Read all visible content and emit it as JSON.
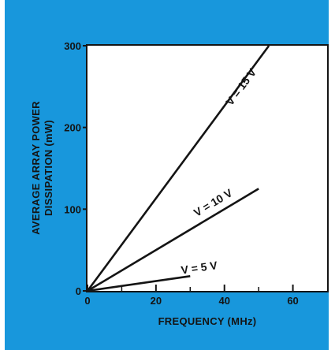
{
  "colors": {
    "background": "#1897dc",
    "plot_area": "#ffffff",
    "ink": "#141414"
  },
  "chart_data": {
    "type": "line",
    "title": "",
    "xlabel": "FREQUENCY (MHz)",
    "ylabel_lines": [
      "AVERAGE ARRAY POWER",
      "DISSIPATION (mW)"
    ],
    "xlim": [
      0,
      70
    ],
    "ylim": [
      0,
      300
    ],
    "x_ticks": [
      0,
      20,
      40,
      60
    ],
    "x_minor_ticks": [
      10,
      30,
      50
    ],
    "y_ticks": [
      0,
      100,
      200,
      300
    ],
    "grid": false,
    "series": [
      {
        "name": "V = 15 V",
        "x": [
          0,
          53
        ],
        "y": [
          0,
          300
        ]
      },
      {
        "name": "V = 10 V",
        "x": [
          0,
          50
        ],
        "y": [
          0,
          125
        ]
      },
      {
        "name": "V = 5 V",
        "x": [
          0,
          30
        ],
        "y": [
          0,
          18
        ]
      }
    ]
  }
}
